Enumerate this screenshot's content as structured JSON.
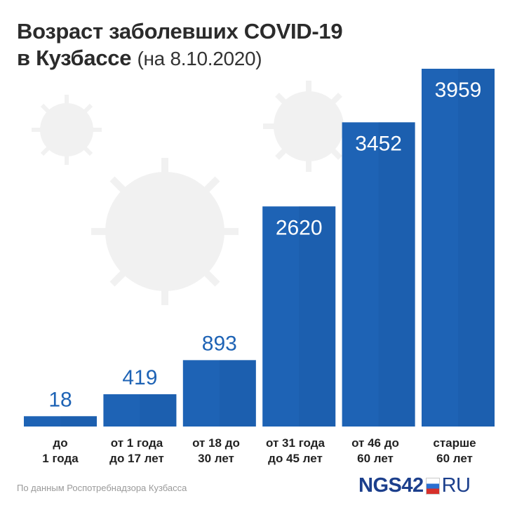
{
  "title": {
    "line1": "Возраст заболевших COVID-19",
    "line2": "в Кузбассе",
    "date": "(на 8.10.2020)"
  },
  "chart_data": {
    "type": "bar",
    "categories": [
      "до 1 года",
      "от 1 года до 17 лет",
      "от 18 до 30 лет",
      "от 31 года до 45 лет",
      "от 46 до 60 лет",
      "старше 60 лет"
    ],
    "category_lines": [
      [
        "до",
        "1 года"
      ],
      [
        "от 1 года",
        "до 17 лет"
      ],
      [
        "от 18 до",
        "30 лет"
      ],
      [
        "от 31 года",
        "до 45 лет"
      ],
      [
        "от 46 до",
        "60 лет"
      ],
      [
        "старше",
        "60 лет"
      ]
    ],
    "values": [
      18,
      419,
      893,
      2620,
      3452,
      3959
    ],
    "bar_color": "#1e63b5",
    "value_label_color": "#1e63b5",
    "value_label_inside_color": "#ffffff"
  },
  "footer": {
    "source": "По данным Роспотребнадзора Кузбасса",
    "logo_brand": "NGS42",
    "logo_suffix": "RU"
  }
}
